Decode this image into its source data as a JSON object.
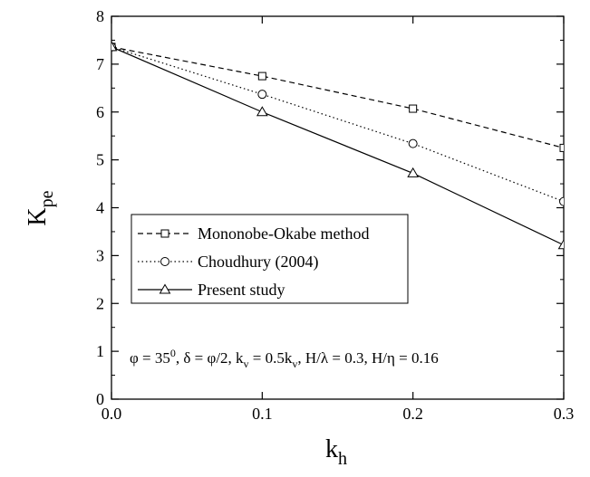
{
  "chart_data": {
    "type": "line",
    "x_label": "k",
    "x_label_sub": "h",
    "y_label": "K",
    "y_label_sub": "pe",
    "x": [
      0,
      0.1,
      0.2,
      0.3
    ],
    "series": [
      {
        "name": "Mononobe-Okabe method",
        "color": "#000000",
        "dash": "6,4",
        "marker": "square",
        "values": [
          7.36,
          6.75,
          6.07,
          5.25
        ]
      },
      {
        "name": "Choudhury (2004)",
        "color": "#000000",
        "dash": "1.5,3",
        "marker": "circle",
        "values": [
          7.36,
          6.37,
          5.34,
          4.13
        ]
      },
      {
        "name": "Present study",
        "color": "#000000",
        "dash": "none",
        "marker": "triangle",
        "values": [
          7.36,
          6.0,
          4.72,
          3.22
        ]
      }
    ],
    "xlim": [
      0,
      0.3
    ],
    "ylim": [
      0,
      8
    ],
    "xticks": [
      {
        "value": 0,
        "label": "0.0"
      },
      0.1,
      0.2,
      0.3
    ],
    "yticks": [
      0,
      1,
      2,
      3,
      4,
      5,
      6,
      7,
      8
    ],
    "yticks_minor": [
      0.5,
      1.5,
      2.5,
      3.5,
      4.5,
      5.5,
      6.5,
      7.5
    ],
    "annotation": [
      {
        "text": "φ = 35"
      },
      {
        "text": "0",
        "sup": true
      },
      {
        "text": ", δ = φ/2,  k"
      },
      {
        "text": "v",
        "sub": true
      },
      {
        "text": " = 0.5k"
      },
      {
        "text": "v",
        "sub": true
      },
      {
        "text": ", H/λ = 0.3, H/η = 0.16"
      }
    ]
  }
}
